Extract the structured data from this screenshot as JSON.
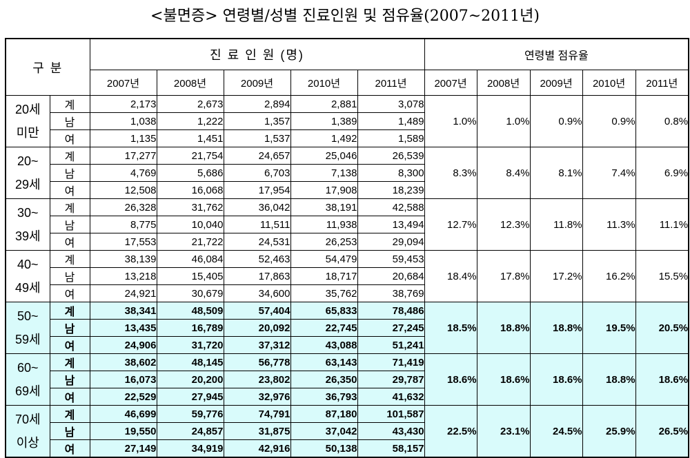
{
  "title": "<불면증> 연령별/성별 진료인원 및 점유율(2007~2011년)",
  "header": {
    "category": "구 분",
    "patients_group": "진 료 인 원 (명)",
    "share_group": "연령별 점유율",
    "years": [
      "2007년",
      "2008년",
      "2009년",
      "2010년",
      "2011년"
    ]
  },
  "groups": [
    {
      "age_line1": "20세",
      "age_line2": "미만",
      "highlight": false,
      "rows": [
        {
          "sex": "계",
          "values": [
            "2,173",
            "2,673",
            "2,894",
            "2,881",
            "3,078"
          ]
        },
        {
          "sex": "남",
          "values": [
            "1,038",
            "1,222",
            "1,357",
            "1,389",
            "1,489"
          ]
        },
        {
          "sex": "여",
          "values": [
            "1,135",
            "1,451",
            "1,537",
            "1,492",
            "1,589"
          ]
        }
      ],
      "share": [
        "1.0%",
        "1.0%",
        "0.9%",
        "0.9%",
        "0.8%"
      ]
    },
    {
      "age_line1": "20~",
      "age_line2": "29세",
      "highlight": false,
      "rows": [
        {
          "sex": "계",
          "values": [
            "17,277",
            "21,754",
            "24,657",
            "25,046",
            "26,539"
          ]
        },
        {
          "sex": "남",
          "values": [
            "4,769",
            "5,686",
            "6,703",
            "7,138",
            "8,300"
          ]
        },
        {
          "sex": "여",
          "values": [
            "12,508",
            "16,068",
            "17,954",
            "17,908",
            "18,239"
          ]
        }
      ],
      "share": [
        "8.3%",
        "8.4%",
        "8.1%",
        "7.4%",
        "6.9%"
      ]
    },
    {
      "age_line1": "30~",
      "age_line2": "39세",
      "highlight": false,
      "rows": [
        {
          "sex": "계",
          "values": [
            "26,328",
            "31,762",
            "36,042",
            "38,191",
            "42,588"
          ]
        },
        {
          "sex": "남",
          "values": [
            "8,775",
            "10,040",
            "11,511",
            "11,938",
            "13,494"
          ]
        },
        {
          "sex": "여",
          "values": [
            "17,553",
            "21,722",
            "24,531",
            "26,253",
            "29,094"
          ]
        }
      ],
      "share": [
        "12.7%",
        "12.3%",
        "11.8%",
        "11.3%",
        "11.1%"
      ]
    },
    {
      "age_line1": "40~",
      "age_line2": "49세",
      "highlight": false,
      "rows": [
        {
          "sex": "계",
          "values": [
            "38,139",
            "46,084",
            "52,463",
            "54,479",
            "59,453"
          ]
        },
        {
          "sex": "남",
          "values": [
            "13,218",
            "15,405",
            "17,863",
            "18,717",
            "20,684"
          ]
        },
        {
          "sex": "여",
          "values": [
            "24,921",
            "30,679",
            "34,600",
            "35,762",
            "38,769"
          ]
        }
      ],
      "share": [
        "18.4%",
        "17.8%",
        "17.2%",
        "16.2%",
        "15.5%"
      ]
    },
    {
      "age_line1": "50~",
      "age_line2": "59세",
      "highlight": true,
      "rows": [
        {
          "sex": "계",
          "values": [
            "38,341",
            "48,509",
            "57,404",
            "65,833",
            "78,486"
          ]
        },
        {
          "sex": "남",
          "values": [
            "13,435",
            "16,789",
            "20,092",
            "22,745",
            "27,245"
          ]
        },
        {
          "sex": "여",
          "values": [
            "24,906",
            "31,720",
            "37,312",
            "43,088",
            "51,241"
          ]
        }
      ],
      "share": [
        "18.5%",
        "18.8%",
        "18.8%",
        "19.5%",
        "20.5%"
      ]
    },
    {
      "age_line1": "60~",
      "age_line2": "69세",
      "highlight": true,
      "rows": [
        {
          "sex": "계",
          "values": [
            "38,602",
            "48,145",
            "56,778",
            "63,143",
            "71,419"
          ]
        },
        {
          "sex": "남",
          "values": [
            "16,073",
            "20,200",
            "23,802",
            "26,350",
            "29,787"
          ]
        },
        {
          "sex": "여",
          "values": [
            "22,529",
            "27,945",
            "32,976",
            "36,793",
            "41,632"
          ]
        }
      ],
      "share": [
        "18.6%",
        "18.6%",
        "18.6%",
        "18.8%",
        "18.6%"
      ]
    },
    {
      "age_line1": "70세",
      "age_line2": "이상",
      "highlight": true,
      "rows": [
        {
          "sex": "계",
          "values": [
            "46,699",
            "59,776",
            "74,791",
            "87,180",
            "101,587"
          ]
        },
        {
          "sex": "남",
          "values": [
            "19,550",
            "24,857",
            "31,875",
            "37,042",
            "43,430"
          ]
        },
        {
          "sex": "여",
          "values": [
            "27,149",
            "34,919",
            "42,916",
            "50,138",
            "58,157"
          ]
        }
      ],
      "share": [
        "22.5%",
        "23.1%",
        "24.5%",
        "25.9%",
        "26.5%"
      ]
    }
  ],
  "colors": {
    "highlight_bg": "#d9fbfb",
    "border": "#000000"
  }
}
